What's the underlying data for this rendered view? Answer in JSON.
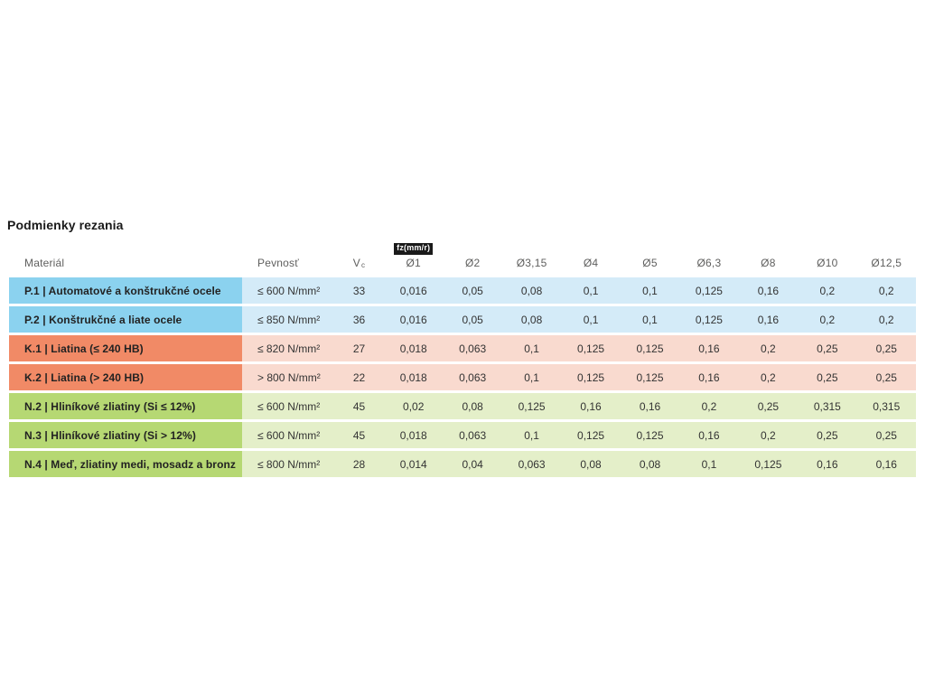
{
  "page": {
    "title": "Podmienky rezania"
  },
  "table": {
    "header": {
      "material": "Materiál",
      "strength": "Pevnosť",
      "vc_base": "V",
      "vc_sub": "c",
      "fz_badge": "fz(mm/r)",
      "diameters": [
        "Ø1",
        "Ø2",
        "Ø3,15",
        "Ø4",
        "Ø5",
        "Ø6,3",
        "Ø8",
        "Ø10",
        "Ø12,5"
      ]
    },
    "group_colors": {
      "P": {
        "dark": "#8BD2EF",
        "light": "#D4EBF8"
      },
      "K": {
        "dark": "#F18A66",
        "light": "#F9DACF"
      },
      "N": {
        "dark": "#B6D873",
        "light": "#E4EFC9"
      }
    },
    "rows": [
      {
        "group": "P",
        "material": "P.1 | Automatové a konštrukčné ocele",
        "strength": "≤ 600 N/mm²",
        "vc": "33",
        "values": [
          "0,016",
          "0,05",
          "0,08",
          "0,1",
          "0,1",
          "0,125",
          "0,16",
          "0,2",
          "0,2"
        ]
      },
      {
        "group": "P",
        "material": "P.2 | Konštrukčné a liate ocele",
        "strength": "≤ 850 N/mm²",
        "vc": "36",
        "values": [
          "0,016",
          "0,05",
          "0,08",
          "0,1",
          "0,1",
          "0,125",
          "0,16",
          "0,2",
          "0,2"
        ]
      },
      {
        "group": "K",
        "material": "K.1 | Liatina (≤ 240 HB)",
        "strength": "≤ 820 N/mm²",
        "vc": "27",
        "values": [
          "0,018",
          "0,063",
          "0,1",
          "0,125",
          "0,125",
          "0,16",
          "0,2",
          "0,25",
          "0,25"
        ]
      },
      {
        "group": "K",
        "material": "K.2 | Liatina (> 240 HB)",
        "strength": "> 800 N/mm²",
        "vc": "22",
        "values": [
          "0,018",
          "0,063",
          "0,1",
          "0,125",
          "0,125",
          "0,16",
          "0,2",
          "0,25",
          "0,25"
        ]
      },
      {
        "group": "N",
        "material": "N.2 | Hliníkové zliatiny (Si ≤ 12%)",
        "strength": "≤ 600 N/mm²",
        "vc": "45",
        "values": [
          "0,02",
          "0,08",
          "0,125",
          "0,16",
          "0,16",
          "0,2",
          "0,25",
          "0,315",
          "0,315"
        ]
      },
      {
        "group": "N",
        "material": "N.3 | Hliníkové zliatiny (Si > 12%)",
        "strength": "≤ 600 N/mm²",
        "vc": "45",
        "values": [
          "0,018",
          "0,063",
          "0,1",
          "0,125",
          "0,125",
          "0,16",
          "0,2",
          "0,25",
          "0,25"
        ]
      },
      {
        "group": "N",
        "material": "N.4 | Meď, zliatiny medi, mosadz a bronz",
        "strength": "≤ 800 N/mm²",
        "vc": "28",
        "values": [
          "0,014",
          "0,04",
          "0,063",
          "0,08",
          "0,08",
          "0,1",
          "0,125",
          "0,16",
          "0,16"
        ]
      }
    ]
  }
}
